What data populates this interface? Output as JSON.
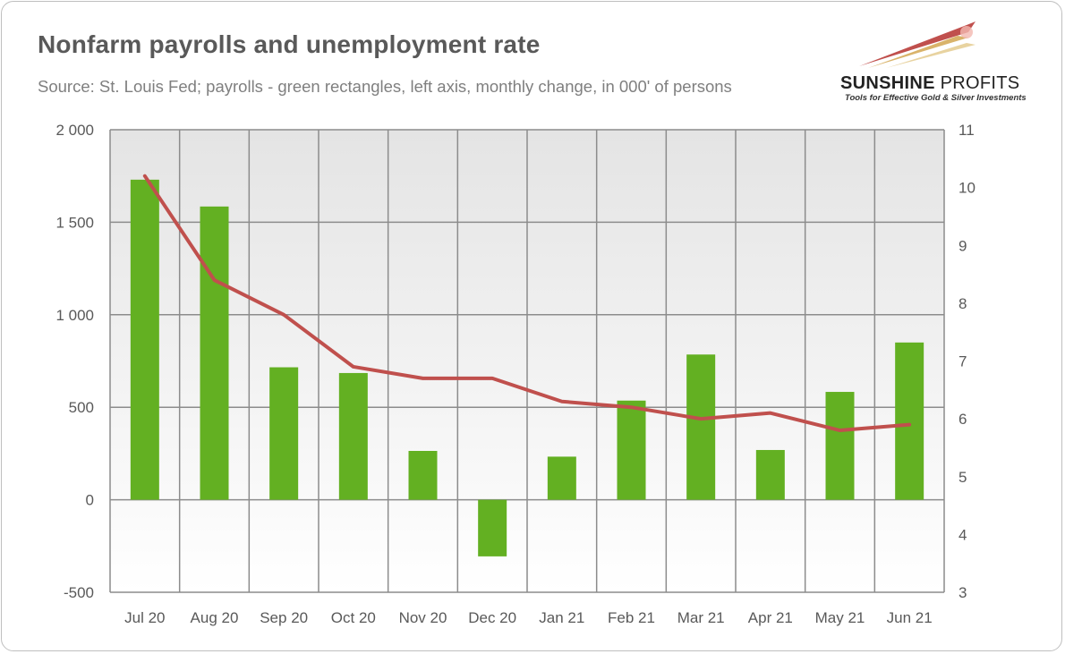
{
  "title": "Nonfarm payrolls and unemployment rate",
  "subtitle": "Source: St. Louis Fed; payrolls - green rectangles, left axis, monthly change, in 000' of persons",
  "logo": {
    "name_bold": "SUNSHINE",
    "name_thin": " PROFITS",
    "tagline": "Tools for Effective Gold & Silver Investments"
  },
  "colors": {
    "bars": "#63b022",
    "line": "#c0504d",
    "grid": "#8c8c8c",
    "text": "#595959"
  },
  "chart_data": {
    "type": "bar",
    "title": "Nonfarm payrolls and unemployment rate",
    "categories": [
      "Jul 20",
      "Aug 20",
      "Sep 20",
      "Oct 20",
      "Nov 20",
      "Dec 20",
      "Jan 21",
      "Feb 21",
      "Mar 21",
      "Apr 21",
      "May 21",
      "Jun 21"
    ],
    "series": [
      {
        "type": "bar",
        "axis": "left",
        "values": [
          1730,
          1585,
          716,
          685,
          264,
          -306,
          233,
          536,
          785,
          269,
          583,
          850
        ]
      },
      {
        "type": "line",
        "axis": "right",
        "values": [
          10.2,
          8.4,
          7.8,
          6.9,
          6.7,
          6.7,
          6.3,
          6.2,
          6.0,
          6.1,
          5.8,
          5.9
        ]
      }
    ],
    "y_left": {
      "ylim": [
        -500,
        2000
      ],
      "ticks": [
        -500,
        0,
        500,
        1000,
        1500,
        2000
      ],
      "tick_labels": [
        "-500",
        "0",
        "500",
        "1 000",
        "1 500",
        "2 000"
      ]
    },
    "y_right": {
      "ylim": [
        3,
        11
      ],
      "ticks": [
        3,
        4,
        5,
        6,
        7,
        8,
        9,
        10,
        11
      ],
      "tick_labels": [
        "3",
        "4",
        "5",
        "6",
        "7",
        "8",
        "9",
        "10",
        "11"
      ]
    },
    "grid": true,
    "legend": "none"
  }
}
